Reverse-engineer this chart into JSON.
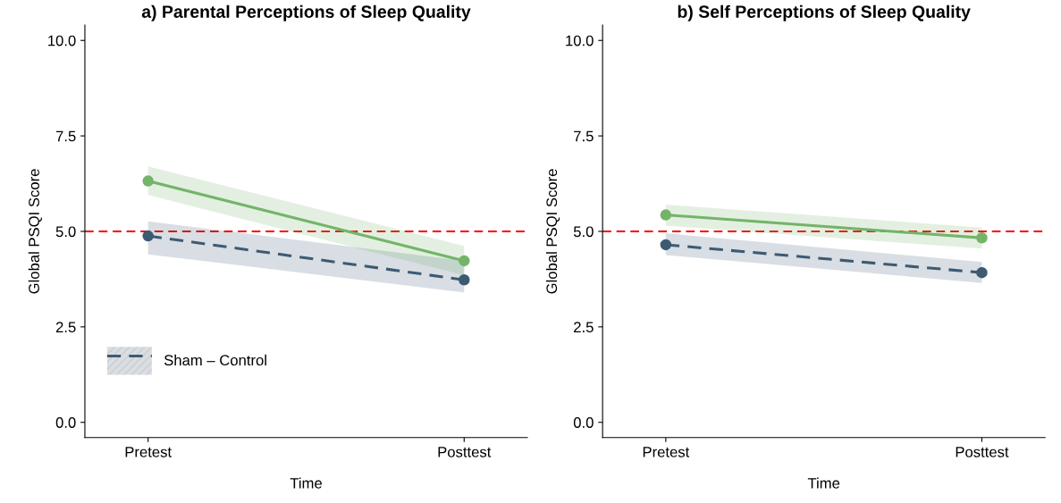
{
  "chart_data": [
    {
      "type": "line",
      "title": "a) Parental Perceptions of Sleep Quality",
      "xlabel": "Time",
      "ylabel": "Global PSQI Score",
      "categories": [
        "Pretest",
        "Posttest"
      ],
      "ylim": [
        -0.4,
        10.4
      ],
      "yticks": [
        {
          "value": 0,
          "label": "0.0"
        },
        {
          "value": 2.5,
          "label": "2.5"
        },
        {
          "value": 5,
          "label": "5.0"
        },
        {
          "value": 7.5,
          "label": "7.5"
        },
        {
          "value": 10,
          "label": "10.0"
        }
      ],
      "marker": "circle",
      "grid": false,
      "legend": "bottom left",
      "ref_lines": [
        {
          "axis": "y",
          "value": 5,
          "color": "#ff0000",
          "line_style": "dashed"
        }
      ],
      "series": [
        {
          "name": "Sham – Control",
          "color": "#3d5a73",
          "line_style": "dashed",
          "values": [
            4.88,
            3.73
          ],
          "lower": [
            4.4,
            3.4
          ],
          "upper": [
            5.26,
            4.23
          ]
        },
        {
          "color": "#74b46a",
          "line_style": "solid",
          "values": [
            6.32,
            4.23
          ],
          "lower": [
            5.95,
            3.85
          ],
          "upper": [
            6.7,
            4.62
          ]
        }
      ]
    },
    {
      "type": "line",
      "title": "b) Self Perceptions of Sleep Quality",
      "xlabel": "Time",
      "ylabel": "Global PSQI Score",
      "categories": [
        "Pretest",
        "Posttest"
      ],
      "ylim": [
        -0.4,
        10.4
      ],
      "yticks": [
        {
          "value": 0,
          "label": "0.0"
        },
        {
          "value": 2.5,
          "label": "2.5"
        },
        {
          "value": 5,
          "label": "5.0"
        },
        {
          "value": 7.5,
          "label": "7.5"
        },
        {
          "value": 10,
          "label": "10.0"
        }
      ],
      "marker": "circle",
      "grid": false,
      "ref_lines": [
        {
          "axis": "y",
          "value": 5,
          "color": "#ff0000",
          "line_style": "dashed"
        }
      ],
      "series": [
        {
          "color": "#3d5a73",
          "line_style": "dashed",
          "values": [
            4.65,
            3.92
          ],
          "lower": [
            4.38,
            3.65
          ],
          "upper": [
            4.95,
            4.2
          ]
        },
        {
          "color": "#74b46a",
          "line_style": "solid",
          "values": [
            5.43,
            4.83
          ],
          "lower": [
            5.15,
            4.55
          ],
          "upper": [
            5.7,
            5.1
          ]
        }
      ]
    }
  ]
}
